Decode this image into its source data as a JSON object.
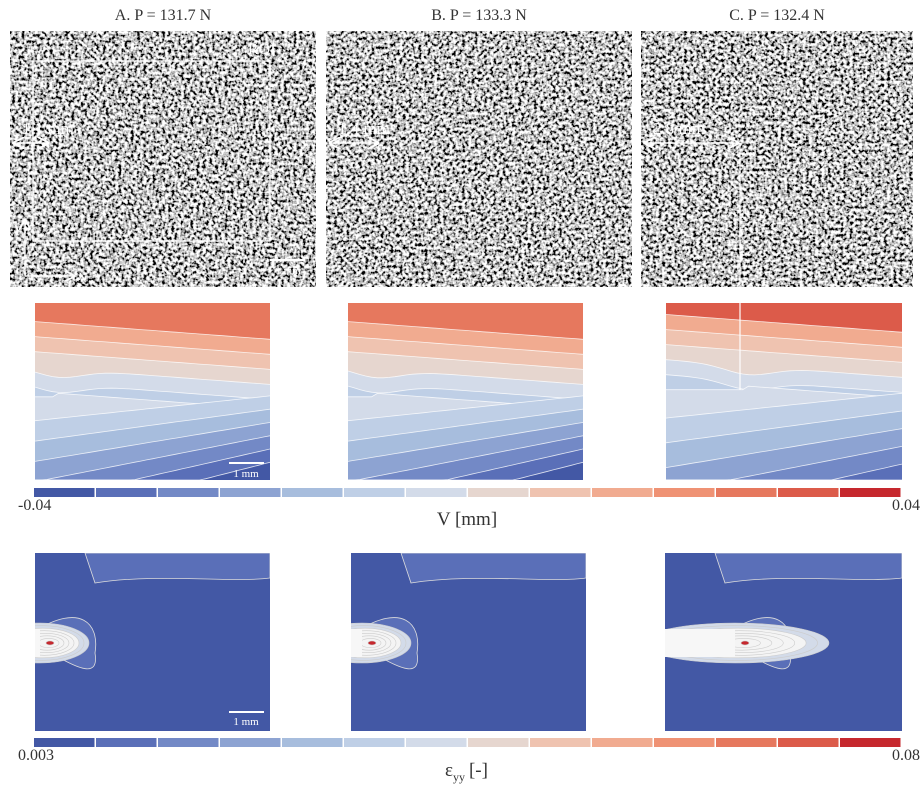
{
  "panels": [
    {
      "title": "A. P = 131.7 N",
      "crack_length": "1.1 mm"
    },
    {
      "title": "B. P = 133.3 N",
      "crack_length": "1.4 mm"
    },
    {
      "title": "C. P = 132.4 N",
      "crack_length": "2.8 mm"
    }
  ],
  "roi_label": "ROI",
  "scale_bar": "1 mm",
  "axes": {
    "x": "x",
    "y": "y"
  },
  "colormap": [
    "#4358a5",
    "#5a6fb8",
    "#7389c6",
    "#8da3d2",
    "#a7bddd",
    "#bfcfe6",
    "#d3dbe9",
    "#e6d6cf",
    "#efc3b0",
    "#f1ab90",
    "#ef9274",
    "#e6785e",
    "#dc5b4a",
    "#c6282e"
  ],
  "displacement_colorbar": {
    "min": "-0.04",
    "max": "0.04",
    "label": "V [mm]"
  },
  "strain_colorbar": {
    "min": "0.003",
    "max": "0.08",
    "label_symbol": "ε",
    "label_subscript": "yy",
    "label_unit": "[-]"
  }
}
